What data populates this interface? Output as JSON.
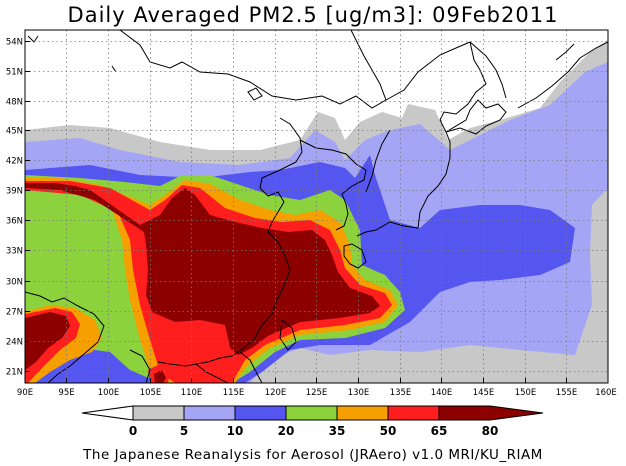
{
  "title": "Daily Averaged PM2.5 [ug/m3]: 09Feb2011",
  "credit": "The Japanese Reanalysis for Aerosol (JRAero) v1.0 MRI/KU_RIAM",
  "map": {
    "lat_labels": [
      "54N",
      "51N",
      "48N",
      "45N",
      "42N",
      "39N",
      "36N",
      "33N",
      "30N",
      "27N",
      "24N",
      "21N"
    ],
    "lon_labels": [
      "90E",
      "95E",
      "100E",
      "105E",
      "110E",
      "115E",
      "120E",
      "125E",
      "130E",
      "135E",
      "140E",
      "145E",
      "150E",
      "155E",
      "160E"
    ]
  },
  "legend": {
    "labels": [
      "0",
      "5",
      "10",
      "20",
      "35",
      "50",
      "65",
      "80"
    ],
    "colors": [
      "#ffffff",
      "#c8c8c8",
      "#a5a5f5",
      "#5555f0",
      "#8cd23c",
      "#f5a000",
      "#ff1e1e",
      "#8c0000"
    ]
  }
}
